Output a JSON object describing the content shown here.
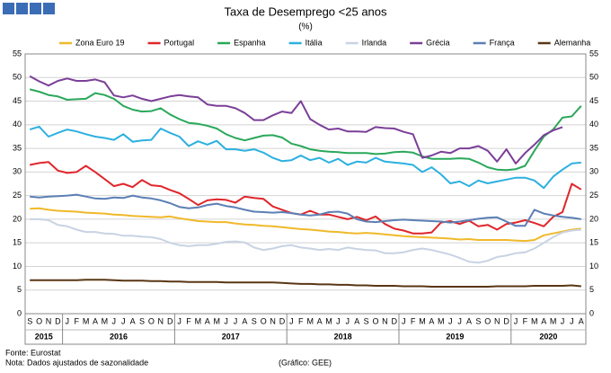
{
  "chart_data": {
    "type": "line",
    "title": "Taxa de Desemprego <25 anos",
    "subtitle": "(%)",
    "source": "Fonte: Eurostat",
    "note": "Nota: Dados ajustados de sazonalidade",
    "credit": "(Gráfico: GEE)",
    "categories": [
      "S",
      "O",
      "N",
      "D",
      "J",
      "F",
      "M",
      "A",
      "M",
      "J",
      "J",
      "A",
      "S",
      "O",
      "N",
      "D",
      "J",
      "F",
      "M",
      "A",
      "M",
      "J",
      "J",
      "A",
      "S",
      "O",
      "N",
      "D",
      "J",
      "F",
      "M",
      "A",
      "M",
      "J",
      "J",
      "A",
      "S",
      "O",
      "N",
      "D",
      "J",
      "F",
      "M",
      "A",
      "M",
      "J",
      "J",
      "A",
      "S",
      "O",
      "N",
      "D",
      "J",
      "F",
      "M",
      "A",
      "M",
      "J",
      "J",
      "A"
    ],
    "years": [
      "2015",
      "2016",
      "2017",
      "2018",
      "2019",
      "2020"
    ],
    "ylim": [
      0,
      55
    ],
    "yticks": [
      0,
      5,
      10,
      15,
      20,
      25,
      30,
      35,
      40,
      45,
      50,
      55
    ],
    "grid": true,
    "series": [
      {
        "name": "Zona Euro 19",
        "color": "#f0b92a",
        "values": [
          22.2,
          22.3,
          22.0,
          21.8,
          21.7,
          21.6,
          21.4,
          21.3,
          21.2,
          21.0,
          20.9,
          20.7,
          20.6,
          20.5,
          20.4,
          20.6,
          20.2,
          19.9,
          19.6,
          19.5,
          19.4,
          19.4,
          19.1,
          18.9,
          18.8,
          18.6,
          18.5,
          18.3,
          18.1,
          17.9,
          17.8,
          17.6,
          17.4,
          17.3,
          17.1,
          17.0,
          17.1,
          17.0,
          16.8,
          16.6,
          16.4,
          16.3,
          16.2,
          16.1,
          16.0,
          15.9,
          15.7,
          15.8,
          15.6,
          15.6,
          15.6,
          15.6,
          15.5,
          15.4,
          15.6,
          16.6,
          17.0,
          17.4,
          17.8,
          18.0
        ]
      },
      {
        "name": "Portugal",
        "color": "#e0262b",
        "values": [
          31.5,
          31.9,
          32.1,
          30.3,
          29.8,
          30.0,
          31.3,
          30.0,
          28.5,
          27.0,
          27.5,
          26.8,
          28.3,
          27.2,
          27.0,
          26.2,
          25.5,
          24.3,
          23.0,
          24.0,
          24.2,
          24.1,
          23.5,
          24.8,
          24.5,
          24.3,
          22.7,
          22.0,
          21.3,
          21.0,
          21.8,
          21.0,
          21.0,
          20.5,
          20.0,
          20.5,
          19.8,
          20.6,
          19.0,
          18.0,
          17.6,
          17.0,
          17.0,
          17.2,
          19.3,
          19.6,
          19.0,
          19.7,
          18.5,
          18.8,
          17.8,
          19.0,
          19.3,
          19.8,
          19.2,
          18.5,
          20.5,
          21.5,
          27.5,
          26.3
        ]
      },
      {
        "name": "Espanha",
        "color": "#2aa85a",
        "values": [
          47.5,
          47.0,
          46.3,
          46.0,
          45.3,
          45.4,
          45.5,
          46.7,
          46.3,
          45.5,
          44.0,
          43.2,
          42.8,
          42.9,
          43.5,
          42.2,
          41.2,
          40.4,
          40.2,
          39.8,
          39.2,
          38.0,
          37.2,
          36.7,
          37.2,
          37.7,
          37.8,
          37.3,
          36.0,
          35.5,
          34.8,
          34.5,
          34.3,
          34.2,
          34.0,
          34.0,
          34.0,
          33.8,
          33.9,
          34.2,
          34.3,
          34.1,
          33.3,
          32.8,
          32.8,
          32.8,
          32.9,
          32.8,
          32.0,
          31.0,
          30.5,
          30.4,
          30.6,
          31.3,
          34.5,
          37.5,
          39.0,
          41.5,
          41.8,
          44.0
        ]
      },
      {
        "name": "Itália",
        "color": "#2cb0e0",
        "values": [
          39.0,
          39.6,
          37.5,
          38.3,
          39.0,
          38.6,
          38.0,
          37.5,
          37.2,
          36.8,
          38.0,
          36.4,
          36.7,
          36.8,
          39.2,
          38.3,
          37.5,
          35.5,
          36.5,
          35.8,
          36.6,
          34.8,
          34.8,
          34.5,
          34.8,
          34.1,
          33.0,
          32.3,
          32.5,
          33.5,
          32.5,
          33.0,
          32.0,
          32.8,
          31.5,
          32.2,
          32.0,
          33.0,
          32.2,
          32.0,
          31.8,
          31.5,
          30.0,
          31.0,
          29.5,
          27.6,
          28.0,
          27.0,
          28.2,
          27.6,
          28.0,
          28.4,
          28.8,
          28.8,
          28.2,
          26.6,
          29.0,
          30.5,
          31.8,
          32.0
        ]
      },
      {
        "name": "Irlanda",
        "color": "#c8d3e3",
        "values": [
          20.0,
          20.0,
          19.8,
          18.8,
          18.5,
          17.8,
          17.3,
          17.3,
          17.0,
          16.9,
          16.5,
          16.5,
          16.3,
          16.2,
          15.8,
          15.0,
          14.5,
          14.3,
          14.5,
          14.5,
          14.8,
          15.2,
          15.3,
          15.1,
          14.0,
          13.5,
          13.8,
          14.3,
          14.5,
          14.0,
          13.8,
          13.5,
          13.7,
          13.5,
          14.0,
          13.7,
          13.5,
          13.4,
          12.8,
          12.8,
          13.0,
          13.5,
          13.8,
          13.5,
          13.0,
          12.5,
          11.8,
          11.0,
          10.8,
          11.2,
          12.0,
          12.3,
          12.8,
          13.0,
          13.8,
          15.0,
          16.2,
          17.2,
          17.6,
          17.8
        ]
      },
      {
        "name": "Grécia",
        "color": "#7b3f98",
        "values": [
          50.3,
          49.2,
          48.3,
          49.3,
          49.8,
          49.3,
          49.3,
          49.6,
          49.0,
          46.2,
          45.8,
          46.2,
          45.5,
          45.0,
          45.5,
          46.0,
          46.3,
          46.0,
          45.8,
          44.3,
          44.0,
          44.0,
          43.5,
          42.5,
          41.0,
          41.0,
          42.0,
          42.8,
          42.5,
          45.0,
          41.2,
          40.0,
          39.0,
          39.2,
          38.6,
          38.6,
          38.5,
          39.5,
          39.3,
          39.2,
          38.5,
          38.0,
          33.0,
          33.5,
          34.3,
          34.0,
          35.0,
          35.0,
          35.5,
          34.5,
          32.2,
          34.8,
          31.8,
          34.0,
          35.8,
          37.8,
          38.8,
          39.5,
          null,
          null
        ]
      },
      {
        "name": "França",
        "color": "#5b7fb5",
        "values": [
          24.8,
          24.6,
          24.8,
          24.9,
          25.0,
          25.2,
          24.8,
          24.4,
          24.3,
          24.6,
          24.5,
          25.0,
          24.6,
          24.4,
          24.0,
          23.4,
          22.6,
          22.3,
          22.5,
          23.0,
          23.3,
          22.8,
          22.5,
          22.0,
          21.6,
          21.5,
          21.4,
          21.5,
          21.3,
          21.0,
          20.8,
          21.0,
          21.5,
          21.6,
          21.2,
          20.0,
          19.5,
          19.4,
          19.6,
          19.8,
          19.9,
          19.8,
          19.7,
          19.6,
          19.5,
          19.3,
          19.5,
          19.8,
          20.1,
          20.3,
          20.4,
          19.5,
          18.6,
          18.6,
          22.0,
          21.2,
          20.8,
          20.5,
          20.3,
          20.0
        ]
      },
      {
        "name": "Alemanha",
        "color": "#5a3614",
        "values": [
          7.1,
          7.1,
          7.1,
          7.1,
          7.1,
          7.1,
          7.2,
          7.2,
          7.2,
          7.1,
          7.0,
          7.0,
          7.0,
          6.9,
          6.9,
          6.8,
          6.8,
          6.7,
          6.7,
          6.7,
          6.7,
          6.6,
          6.6,
          6.6,
          6.6,
          6.6,
          6.6,
          6.5,
          6.4,
          6.3,
          6.3,
          6.2,
          6.2,
          6.1,
          6.1,
          6.0,
          6.0,
          5.9,
          5.9,
          5.9,
          5.8,
          5.8,
          5.8,
          5.7,
          5.7,
          5.7,
          5.7,
          5.7,
          5.7,
          5.7,
          5.8,
          5.8,
          5.8,
          5.8,
          5.9,
          5.9,
          5.9,
          5.9,
          6.0,
          5.8
        ]
      }
    ]
  }
}
